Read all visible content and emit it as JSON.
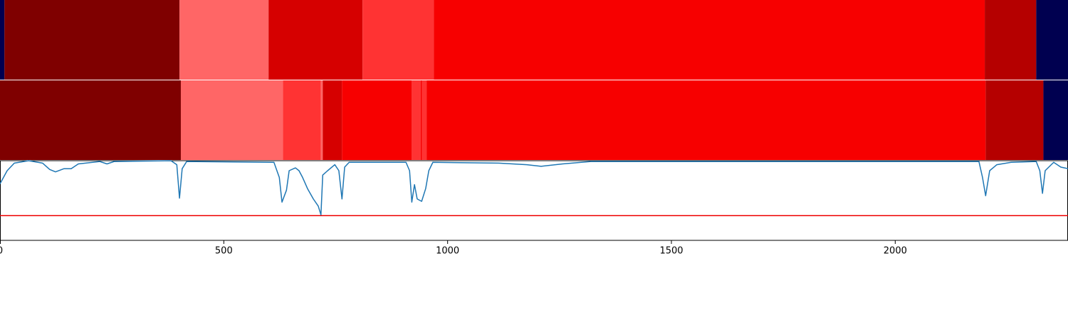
{
  "chart_data": [
    {
      "type": "segments",
      "xlim": [
        0,
        2386
      ],
      "segments": [
        {
          "start": 0,
          "end": 10,
          "color": "#000050"
        },
        {
          "start": 10,
          "end": 401,
          "color": "#7f0000"
        },
        {
          "start": 401,
          "end": 600,
          "color": "#ff6666"
        },
        {
          "start": 600,
          "end": 810,
          "color": "#d60000"
        },
        {
          "start": 810,
          "end": 969,
          "color": "#ff3333"
        },
        {
          "start": 969,
          "end": 2200,
          "color": "#f70000"
        },
        {
          "start": 2200,
          "end": 2315,
          "color": "#b50000"
        },
        {
          "start": 2315,
          "end": 2386,
          "color": "#000050"
        }
      ]
    },
    {
      "type": "segments",
      "xlim": [
        0,
        2386
      ],
      "segments": [
        {
          "start": 0,
          "end": 404,
          "color": "#7f0000"
        },
        {
          "start": 404,
          "end": 632,
          "color": "#ff6666"
        },
        {
          "start": 632,
          "end": 717,
          "color": "#ff3333"
        },
        {
          "start": 717,
          "end": 721,
          "color": "#ff6666"
        },
        {
          "start": 721,
          "end": 764,
          "color": "#d60000"
        },
        {
          "start": 764,
          "end": 920,
          "color": "#f70000"
        },
        {
          "start": 920,
          "end": 940,
          "color": "#ff3333"
        },
        {
          "start": 940,
          "end": 943,
          "color": "#f70000"
        },
        {
          "start": 943,
          "end": 953,
          "color": "#ff3333"
        },
        {
          "start": 953,
          "end": 2202,
          "color": "#f70000"
        },
        {
          "start": 2202,
          "end": 2331,
          "color": "#b50000"
        },
        {
          "start": 2331,
          "end": 2386,
          "color": "#000050"
        }
      ]
    },
    {
      "type": "line",
      "xlim": [
        0,
        2386
      ],
      "ylim": [
        0,
        1
      ],
      "xticks": [
        0,
        500,
        1000,
        1500,
        2000
      ],
      "threshold": 0.31,
      "threshold_color": "#ee0000",
      "series": [
        {
          "color": "#1f77b4",
          "x": [
            0,
            16,
            32,
            64,
            95,
            111,
            124,
            143,
            159,
            175,
            223,
            239,
            255,
            382,
            395,
            401,
            407,
            417,
            612,
            624,
            630,
            640,
            646,
            660,
            668,
            676,
            687,
            700,
            711,
            717,
            721,
            732,
            748,
            757,
            764,
            770,
            780,
            907,
            915,
            920,
            926,
            932,
            942,
            951,
            958,
            967,
            1114,
            1177,
            1209,
            1257,
            1320,
            2187,
            2195,
            2202,
            2211,
            2227,
            2259,
            2315,
            2323,
            2329,
            2335,
            2354,
            2370,
            2386
          ],
          "values": [
            0.71,
            0.875,
            0.97,
            1.0,
            0.97,
            0.89,
            0.86,
            0.9,
            0.9,
            0.96,
            0.99,
            0.96,
            0.99,
            1.0,
            0.95,
            0.53,
            0.9,
            0.99,
            0.98,
            0.79,
            0.48,
            0.63,
            0.875,
            0.91,
            0.875,
            0.79,
            0.65,
            0.52,
            0.43,
            0.32,
            0.82,
            0.875,
            0.95,
            0.875,
            0.52,
            0.92,
            0.98,
            0.98,
            0.875,
            0.48,
            0.7,
            0.52,
            0.49,
            0.65,
            0.875,
            0.98,
            0.97,
            0.95,
            0.93,
            0.96,
            0.99,
            0.99,
            0.79,
            0.56,
            0.875,
            0.95,
            0.98,
            0.99,
            0.875,
            0.59,
            0.875,
            0.98,
            0.92,
            0.9
          ]
        }
      ]
    }
  ]
}
